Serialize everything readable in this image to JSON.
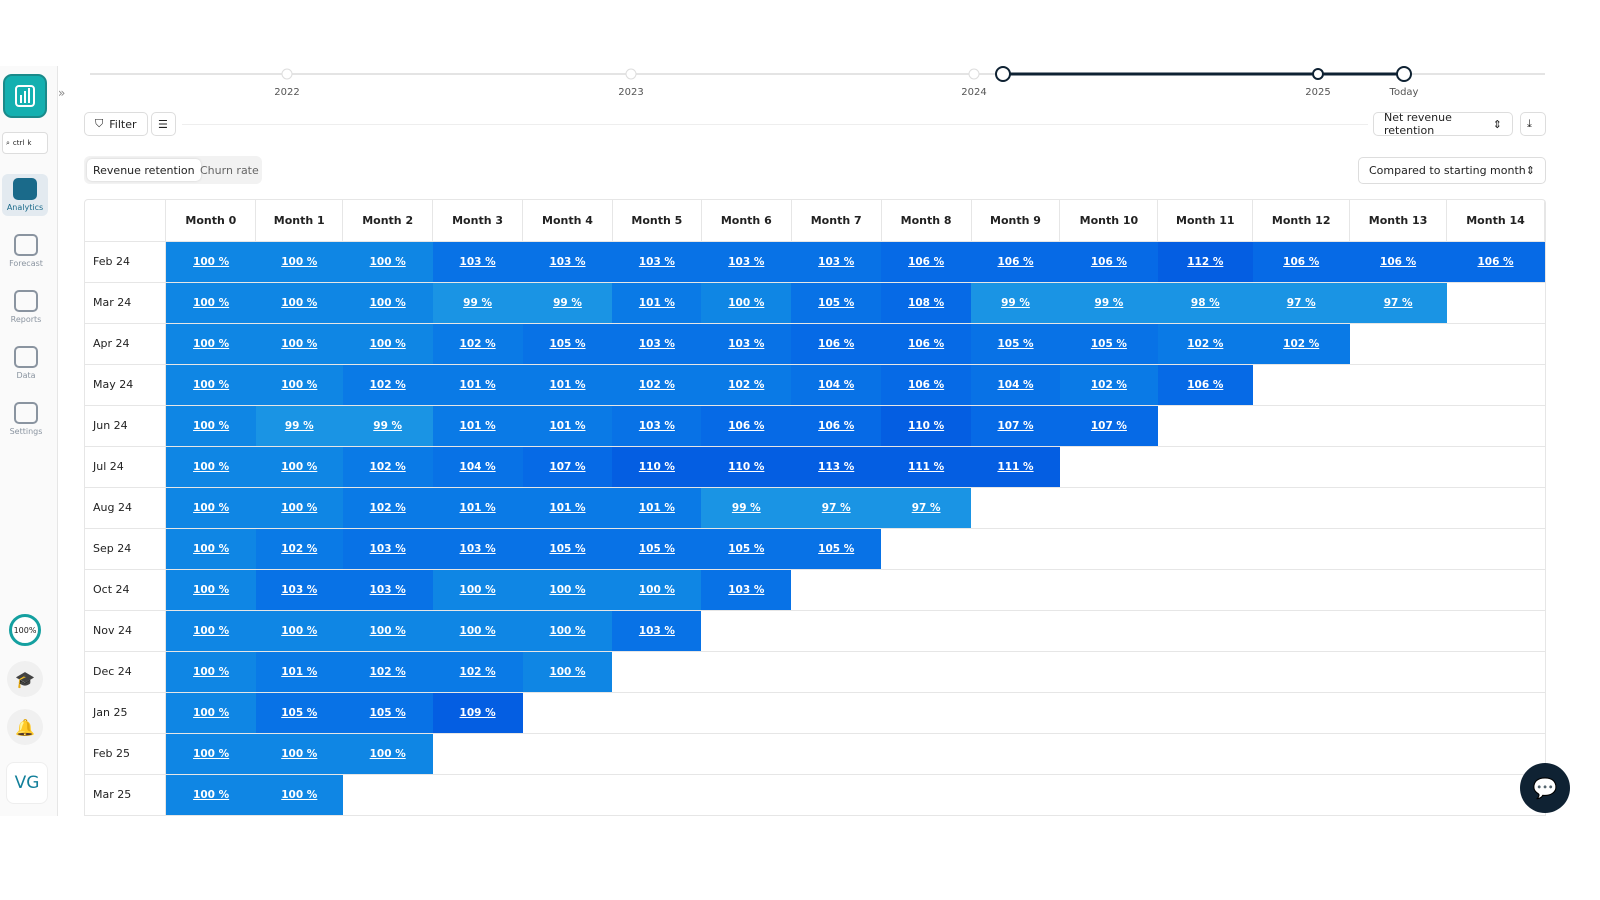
{
  "sidebar": {
    "nav": [
      {
        "label": "Analytics"
      },
      {
        "label": "Forecast"
      },
      {
        "label": "Reports"
      },
      {
        "label": "Data"
      },
      {
        "label": "Settings"
      }
    ],
    "search_keys": [
      "ctrl",
      "k"
    ],
    "progress": "100%",
    "avatar": "VG"
  },
  "timeline": {
    "labels": [
      "2022",
      "2023",
      "2024",
      "2025",
      "Today"
    ]
  },
  "toolbar": {
    "filter": "Filter",
    "metric": "Net revenue retention"
  },
  "tabs": [
    "Revenue retention",
    "Churn rate"
  ],
  "comparison": "Compared to starting month",
  "table": {
    "columns": [
      "Month 0",
      "Month 1",
      "Month 2",
      "Month 3",
      "Month 4",
      "Month 5",
      "Month 6",
      "Month 7",
      "Month 8",
      "Month 9",
      "Month 10",
      "Month 11",
      "Month 12",
      "Month 13",
      "Month 14"
    ],
    "rows": [
      {
        "label": "Feb 24",
        "cells": [
          "100 %",
          "100 %",
          "100 %",
          "103 %",
          "103 %",
          "103 %",
          "103 %",
          "103 %",
          "106 %",
          "106 %",
          "106 %",
          "112 %",
          "106 %",
          "106 %",
          "106 %"
        ]
      },
      {
        "label": "Mar 24",
        "cells": [
          "100 %",
          "100 %",
          "100 %",
          "99 %",
          "99 %",
          "101 %",
          "100 %",
          "105 %",
          "108 %",
          "99 %",
          "99 %",
          "98 %",
          "97 %",
          "97 %"
        ]
      },
      {
        "label": "Apr 24",
        "cells": [
          "100 %",
          "100 %",
          "100 %",
          "102 %",
          "105 %",
          "103 %",
          "103 %",
          "106 %",
          "106 %",
          "105 %",
          "105 %",
          "102 %",
          "102 %"
        ]
      },
      {
        "label": "May 24",
        "cells": [
          "100 %",
          "100 %",
          "102 %",
          "101 %",
          "101 %",
          "102 %",
          "102 %",
          "104 %",
          "106 %",
          "104 %",
          "102 %",
          "106 %"
        ]
      },
      {
        "label": "Jun 24",
        "cells": [
          "100 %",
          "99 %",
          "99 %",
          "101 %",
          "101 %",
          "103 %",
          "106 %",
          "106 %",
          "110 %",
          "107 %",
          "107 %"
        ]
      },
      {
        "label": "Jul 24",
        "cells": [
          "100 %",
          "100 %",
          "102 %",
          "104 %",
          "107 %",
          "110 %",
          "110 %",
          "113 %",
          "111 %",
          "111 %"
        ]
      },
      {
        "label": "Aug 24",
        "cells": [
          "100 %",
          "100 %",
          "102 %",
          "101 %",
          "101 %",
          "101 %",
          "99 %",
          "97 %",
          "97 %"
        ]
      },
      {
        "label": "Sep 24",
        "cells": [
          "100 %",
          "102 %",
          "103 %",
          "103 %",
          "105 %",
          "105 %",
          "105 %",
          "105 %"
        ]
      },
      {
        "label": "Oct 24",
        "cells": [
          "100 %",
          "103 %",
          "103 %",
          "100 %",
          "100 %",
          "100 %",
          "103 %"
        ]
      },
      {
        "label": "Nov 24",
        "cells": [
          "100 %",
          "100 %",
          "100 %",
          "100 %",
          "100 %",
          "103 %"
        ]
      },
      {
        "label": "Dec 24",
        "cells": [
          "100 %",
          "101 %",
          "102 %",
          "102 %",
          "100 %"
        ]
      },
      {
        "label": "Jan 25",
        "cells": [
          "100 %",
          "105 %",
          "105 %",
          "109 %"
        ]
      },
      {
        "label": "Feb 25",
        "cells": [
          "100 %",
          "100 %",
          "100 %"
        ]
      },
      {
        "label": "Mar 25",
        "cells": [
          "100 %",
          "100 %"
        ]
      }
    ]
  }
}
